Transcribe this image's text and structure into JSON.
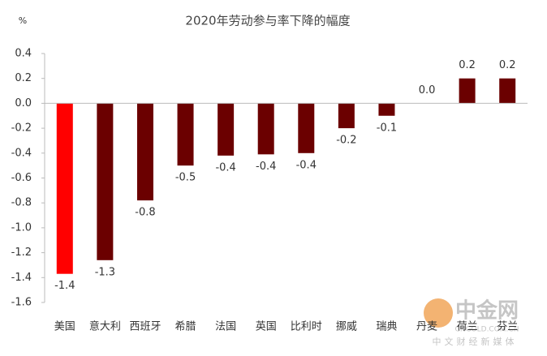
{
  "chart_data": {
    "type": "bar",
    "title": "2020年劳动参与率下降的幅度",
    "y_label": "%",
    "categories": [
      "美国",
      "意大利",
      "西班牙",
      "希腊",
      "法国",
      "英国",
      "比利时",
      "挪威",
      "瑞典",
      "丹麦",
      "荷兰",
      "芬兰"
    ],
    "values": [
      -1.37,
      -1.26,
      -0.78,
      -0.5,
      -0.42,
      -0.41,
      -0.4,
      -0.2,
      -0.1,
      0,
      0.2,
      0.2
    ],
    "value_labels": [
      "-1.4",
      "-1.3",
      "-0.8",
      "-0.5",
      "-0.4",
      "-0.4",
      "-0.4",
      "-0.2",
      "-0.1",
      "0.0",
      "0.2",
      "0.2"
    ],
    "colors": [
      "#ff0000",
      "#6b0000",
      "#6b0000",
      "#6b0000",
      "#6b0000",
      "#6b0000",
      "#6b0000",
      "#6b0000",
      "#6b0000",
      "#6b0000",
      "#6b0000",
      "#6b0000"
    ],
    "ylim": [
      -1.6,
      0.4
    ],
    "yticks": [
      0.4,
      0.2,
      {
        "value": 0,
        "label": "0.0"
      },
      -0.2,
      -0.4,
      -0.6,
      -0.8,
      {
        "value": -1,
        "label": "-1.0"
      },
      -1.2,
      -1.4,
      -1.6
    ],
    "grid": false
  },
  "watermark": {
    "brand": "中金网",
    "domain": "CNGOLD.COM.CN",
    "slogan": "中文财经新媒体"
  }
}
